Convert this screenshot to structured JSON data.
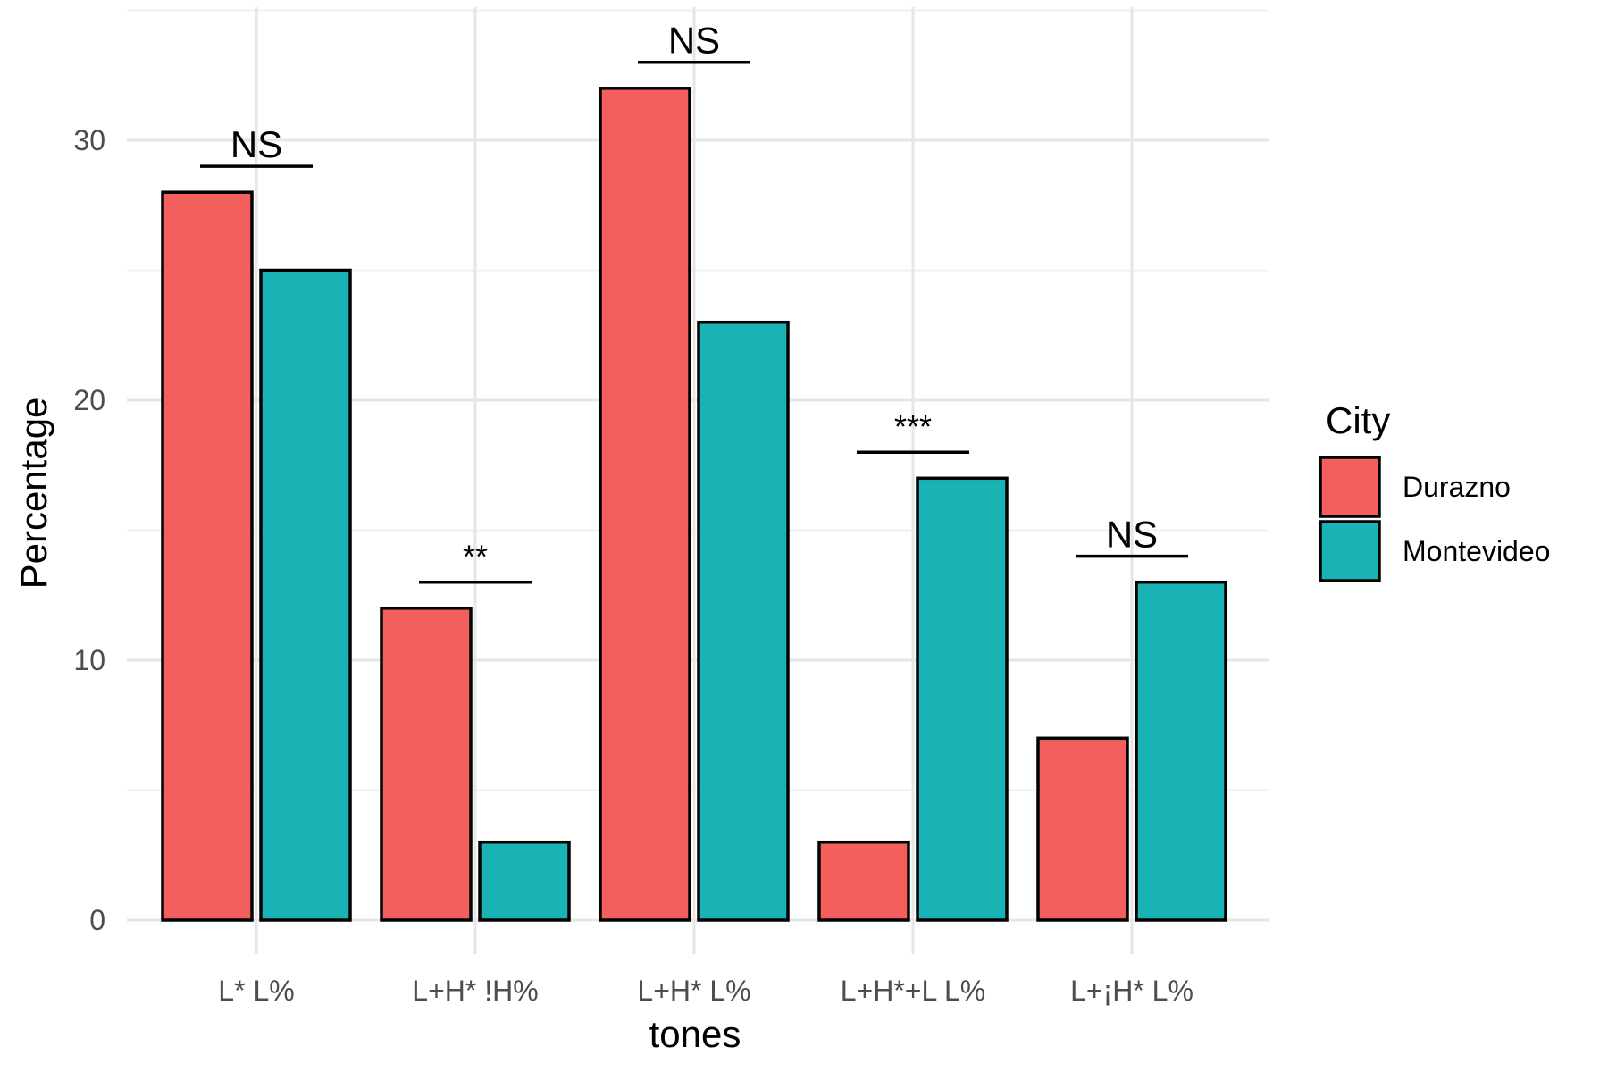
{
  "chart_data": {
    "type": "bar",
    "categories": [
      "L* L%",
      "L+H* !H%",
      "L+H* L%",
      "L+H*+L L%",
      "L+¡H* L%"
    ],
    "series": [
      {
        "name": "Durazno",
        "color": "#F25F5C",
        "values": [
          28,
          12,
          32,
          3,
          7
        ]
      },
      {
        "name": "Montevideo",
        "color": "#1AB3B5",
        "values": [
          25,
          3,
          23,
          17,
          13
        ]
      }
    ],
    "significance": [
      {
        "label": "NS",
        "level": 29
      },
      {
        "label": "**",
        "level": 13
      },
      {
        "label": "NS",
        "level": 33
      },
      {
        "label": "***",
        "level": 18
      },
      {
        "label": "NS",
        "level": 14
      }
    ],
    "yticks": [
      0,
      10,
      20,
      30
    ],
    "xlabel": "tones",
    "ylabel": "Percentage",
    "ylim": [
      -1.4,
      35
    ],
    "grid": true,
    "legend": {
      "title": "City",
      "position": "right"
    }
  }
}
